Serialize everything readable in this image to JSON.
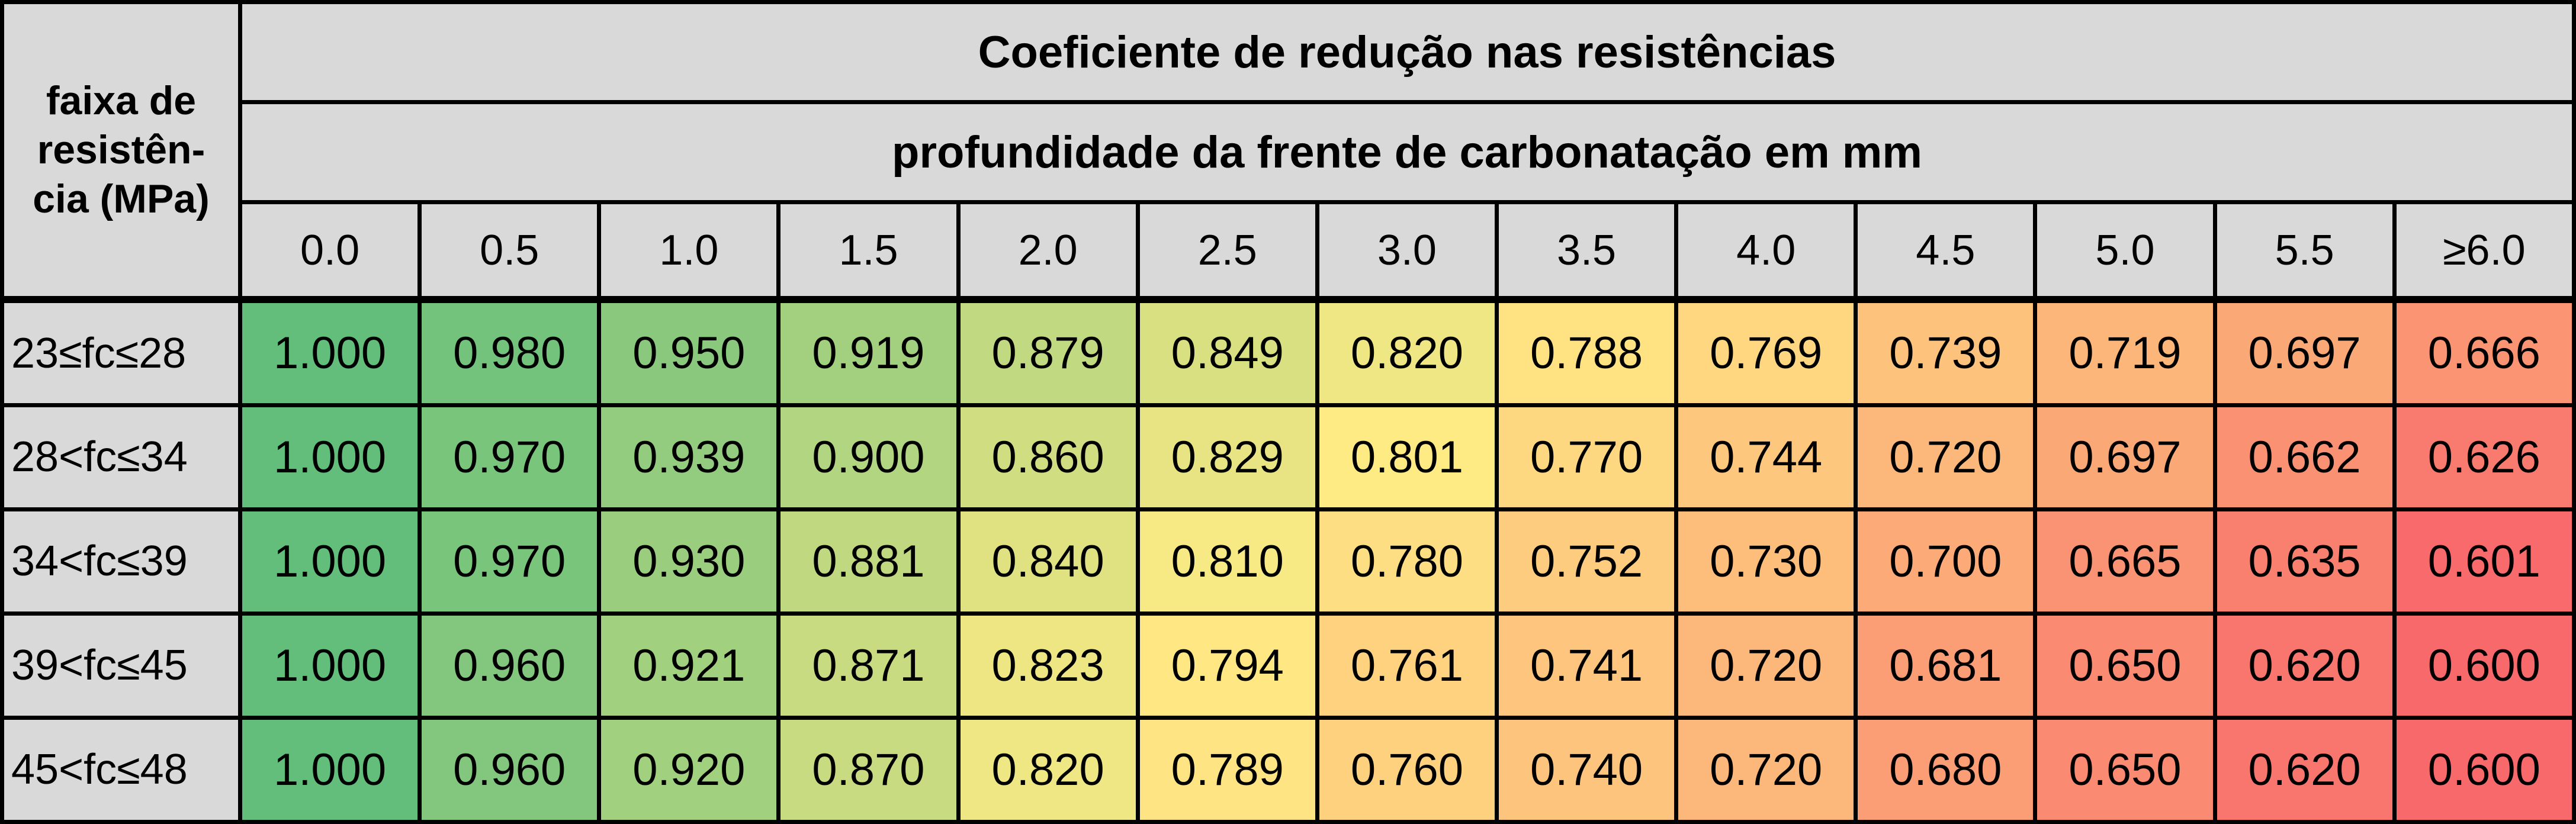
{
  "corner_label_lines": [
    "faixa de",
    "resistên-",
    "cia (MPa)"
  ],
  "main_title": "Coeficiente de redução nas resistências",
  "sub_title": "profundidade da frente de carbonatação em mm",
  "depths": [
    "0.0",
    "0.5",
    "1.0",
    "1.5",
    "2.0",
    "2.5",
    "3.0",
    "3.5",
    "4.0",
    "4.5",
    "5.0",
    "5.5",
    "≥6.0"
  ],
  "rows": [
    {
      "range": "23≤fc≤28",
      "values": [
        "1.000",
        "0.980",
        "0.950",
        "0.919",
        "0.879",
        "0.849",
        "0.820",
        "0.788",
        "0.769",
        "0.739",
        "0.719",
        "0.697",
        "0.666"
      ]
    },
    {
      "range": "28<fc≤34",
      "values": [
        "1.000",
        "0.970",
        "0.939",
        "0.900",
        "0.860",
        "0.829",
        "0.801",
        "0.770",
        "0.744",
        "0.720",
        "0.697",
        "0.662",
        "0.626"
      ]
    },
    {
      "range": "34<fc≤39",
      "values": [
        "1.000",
        "0.970",
        "0.930",
        "0.881",
        "0.840",
        "0.810",
        "0.780",
        "0.752",
        "0.730",
        "0.700",
        "0.665",
        "0.635",
        "0.601"
      ]
    },
    {
      "range": "39<fc≤45",
      "values": [
        "1.000",
        "0.960",
        "0.921",
        "0.871",
        "0.823",
        "0.794",
        "0.761",
        "0.741",
        "0.720",
        "0.681",
        "0.650",
        "0.620",
        "0.600"
      ]
    },
    {
      "range": "45<fc≤48",
      "values": [
        "1.000",
        "0.960",
        "0.920",
        "0.870",
        "0.820",
        "0.789",
        "0.760",
        "0.740",
        "0.720",
        "0.680",
        "0.650",
        "0.620",
        "0.600"
      ]
    }
  ],
  "color_scale": {
    "low": "#f8696b",
    "mid": "#ffeb84",
    "high": "#63be7b",
    "header_bg": "#d9d9d9"
  }
}
